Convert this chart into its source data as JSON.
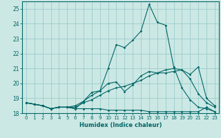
{
  "xlabel": "Humidex (Indice chaleur)",
  "background_color": "#cce8e4",
  "grid_color": "#99cccc",
  "line_color": "#006666",
  "x_values": [
    0,
    1,
    2,
    3,
    4,
    5,
    6,
    7,
    8,
    9,
    10,
    11,
    12,
    13,
    14,
    15,
    16,
    17,
    18,
    19,
    20,
    21,
    22,
    23
  ],
  "line_main_y": [
    18.7,
    18.6,
    18.5,
    18.3,
    18.4,
    18.4,
    18.3,
    18.8,
    19.4,
    19.5,
    21.0,
    22.6,
    22.4,
    22.9,
    23.5,
    25.3,
    24.1,
    23.9,
    21.1,
    19.7,
    18.9,
    18.4,
    18.3,
    18.1
  ],
  "line_mid_y": [
    18.7,
    18.6,
    18.5,
    18.3,
    18.4,
    18.4,
    18.5,
    18.8,
    19.2,
    19.5,
    20.0,
    20.1,
    19.45,
    19.9,
    20.5,
    20.8,
    20.7,
    20.7,
    20.8,
    20.9,
    20.6,
    21.1,
    19.0,
    18.5
  ],
  "line_upper_y": [
    18.7,
    18.6,
    18.5,
    18.3,
    18.4,
    18.4,
    18.4,
    18.7,
    18.9,
    19.2,
    19.5,
    19.7,
    19.8,
    20.0,
    20.2,
    20.5,
    20.7,
    20.9,
    21.0,
    20.9,
    20.3,
    19.3,
    18.7,
    18.4
  ],
  "line_flat_y": [
    18.7,
    18.6,
    18.5,
    18.3,
    18.4,
    18.4,
    18.3,
    18.3,
    18.3,
    18.3,
    18.2,
    18.2,
    18.2,
    18.2,
    18.2,
    18.1,
    18.1,
    18.1,
    18.1,
    18.1,
    18.1,
    18.1,
    18.4,
    18.1
  ],
  "ylim": [
    18.0,
    25.5
  ],
  "xlim": [
    -0.5,
    23.5
  ],
  "yticks": [
    18,
    19,
    20,
    21,
    22,
    23,
    24,
    25
  ],
  "xticks": [
    0,
    1,
    2,
    3,
    4,
    5,
    6,
    7,
    8,
    9,
    10,
    11,
    12,
    13,
    14,
    15,
    16,
    17,
    18,
    19,
    20,
    21,
    22,
    23
  ]
}
